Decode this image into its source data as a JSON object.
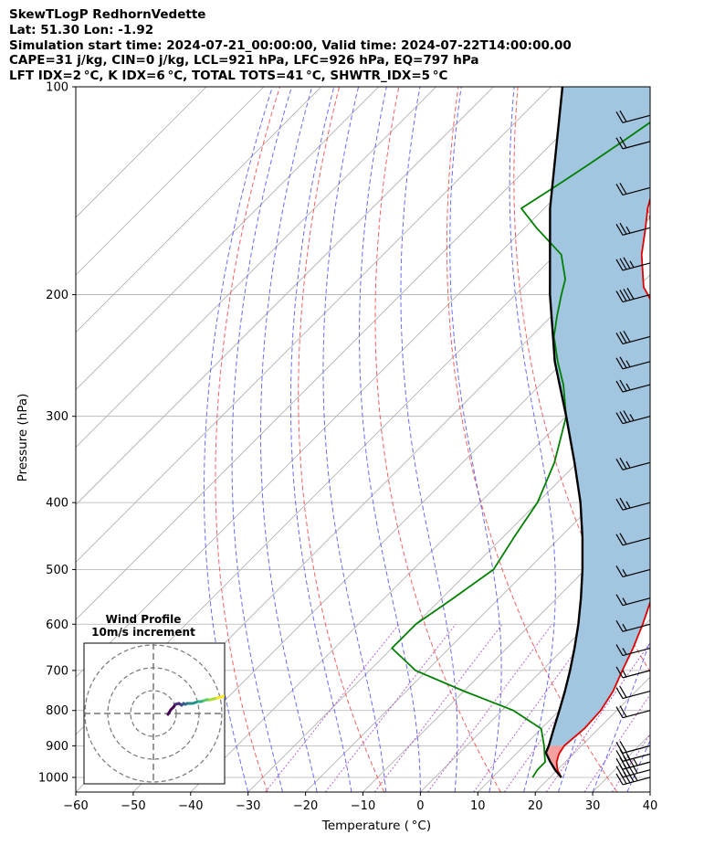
{
  "header": {
    "line1": "SkewTLogP RedhornVedette",
    "line2": "Lat: 51.30   Lon: -1.92",
    "line3": "Simulation start time: 2024-07-21_00:00:00, Valid time: 2024-07-22T14:00:00.00",
    "line4": "CAPE=31 j/kg, CIN=0 j/kg, LCL=921 hPa, LFC=926 hPa, EQ=797 hPa",
    "line5": "LFT IDX=2 °C, K IDX=6 °C, TOTAL TOTS=41 °C, SHWTR_IDX=5 °C"
  },
  "chart_data": {
    "type": "line",
    "title": "SkewTLogP RedhornVedette",
    "xlabel": "Temperature ( °C)",
    "ylabel": "Pressure (hPa)",
    "xlim": [
      -60,
      40
    ],
    "ylim": [
      1050,
      100
    ],
    "y_scale": "log",
    "skew": true,
    "xticks": [
      -60,
      -50,
      -40,
      -30,
      -20,
      -10,
      0,
      10,
      20,
      30,
      40
    ],
    "yticks": [
      1000,
      900,
      800,
      700,
      600,
      500,
      400,
      300,
      200,
      100
    ],
    "grid": true,
    "series": [
      {
        "name": "",
        "color": "#e00000",
        "points": [
          [
            1000,
            22
          ],
          [
            975,
            20
          ],
          [
            950,
            18.5
          ],
          [
            925,
            17.5
          ],
          [
            900,
            17
          ],
          [
            850,
            17.5
          ],
          [
            800,
            17.2
          ],
          [
            750,
            16
          ],
          [
            700,
            14
          ],
          [
            650,
            12
          ],
          [
            600,
            9.5
          ],
          [
            550,
            6.5
          ],
          [
            500,
            3.5
          ],
          [
            450,
            0
          ],
          [
            400,
            -5
          ],
          [
            350,
            -11
          ],
          [
            300,
            -19
          ],
          [
            270,
            -25
          ],
          [
            250,
            -30
          ],
          [
            230,
            -36
          ],
          [
            210,
            -43
          ],
          [
            195,
            -49
          ],
          [
            175,
            -55
          ],
          [
            160,
            -59
          ],
          [
            150,
            -62
          ],
          [
            135,
            -66
          ],
          [
            120,
            -69
          ],
          [
            110,
            -70
          ],
          [
            100,
            -72
          ]
        ]
      },
      {
        "name": "",
        "color": "#008000",
        "points": [
          [
            1000,
            17
          ],
          [
            975,
            16.5
          ],
          [
            950,
            16.5
          ],
          [
            925,
            15
          ],
          [
            900,
            13.5
          ],
          [
            850,
            10
          ],
          [
            800,
            2
          ],
          [
            750,
            -10
          ],
          [
            700,
            -22
          ],
          [
            650,
            -30
          ],
          [
            625,
            -30
          ],
          [
            600,
            -30
          ],
          [
            575,
            -29
          ],
          [
            550,
            -28
          ],
          [
            500,
            -26
          ],
          [
            450,
            -28
          ],
          [
            400,
            -30
          ],
          [
            350,
            -34
          ],
          [
            300,
            -40
          ],
          [
            270,
            -46
          ],
          [
            250,
            -51
          ],
          [
            230,
            -56
          ],
          [
            215,
            -59
          ],
          [
            200,
            -62
          ],
          [
            190,
            -64
          ],
          [
            175,
            -69
          ],
          [
            160,
            -78
          ],
          [
            150,
            -84
          ],
          [
            140,
            -82
          ],
          [
            130,
            -80
          ],
          [
            120,
            -78
          ],
          [
            110,
            -76
          ],
          [
            100,
            -74
          ]
        ]
      },
      {
        "name": "",
        "color": "#000000",
        "points": [
          [
            1000,
            22
          ],
          [
            975,
            19.6
          ],
          [
            950,
            17.4
          ],
          [
            921,
            15
          ],
          [
            900,
            14.3
          ],
          [
            850,
            12.2
          ],
          [
            800,
            10
          ],
          [
            750,
            7.6
          ],
          [
            700,
            4.9
          ],
          [
            650,
            1.8
          ],
          [
            600,
            -1.7
          ],
          [
            550,
            -5.8
          ],
          [
            500,
            -10.5
          ],
          [
            450,
            -16
          ],
          [
            400,
            -22.5
          ],
          [
            350,
            -30.5
          ],
          [
            300,
            -40
          ],
          [
            250,
            -51.5
          ],
          [
            200,
            -64
          ],
          [
            150,
            -79
          ],
          [
            100,
            -98
          ]
        ]
      }
    ],
    "shading": {
      "type": "CAPE",
      "color": "#a2c5e0"
    },
    "wind_barbs": [
      {
        "p": 1000,
        "speed": 45
      },
      {
        "p": 975,
        "speed": 45
      },
      {
        "p": 950,
        "speed": 45
      },
      {
        "p": 925,
        "speed": 25
      },
      {
        "p": 900,
        "speed": 20
      },
      {
        "p": 800,
        "speed": 20
      },
      {
        "p": 750,
        "speed": 20
      },
      {
        "p": 700,
        "speed": 15
      },
      {
        "p": 650,
        "speed": 15
      },
      {
        "p": 600,
        "speed": 15
      },
      {
        "p": 550,
        "speed": 15
      },
      {
        "p": 500,
        "speed": 15
      },
      {
        "p": 450,
        "speed": 20
      },
      {
        "p": 400,
        "speed": 25
      },
      {
        "p": 350,
        "speed": 25
      },
      {
        "p": 300,
        "speed": 35
      },
      {
        "p": 270,
        "speed": 25
      },
      {
        "p": 250,
        "speed": 25
      },
      {
        "p": 230,
        "speed": 30
      },
      {
        "p": 200,
        "speed": 40
      },
      {
        "p": 180,
        "speed": 35
      },
      {
        "p": 160,
        "speed": 25
      },
      {
        "p": 140,
        "speed": 20
      },
      {
        "p": 120,
        "speed": 20
      },
      {
        "p": 110,
        "speed": 20
      }
    ],
    "inset": {
      "title_line1": "Wind Profile",
      "title_line2": "10m/s increment",
      "rings": 3
    }
  }
}
